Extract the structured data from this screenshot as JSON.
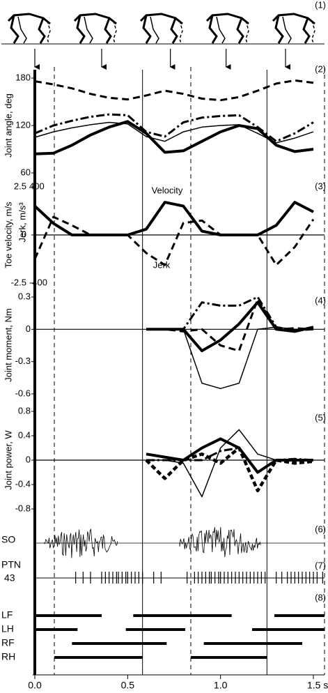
{
  "x_axis": {
    "xlim": [
      0,
      1.56
    ],
    "xticks": [
      {
        "value": 0,
        "label": "0.0"
      },
      0.5,
      {
        "value": 1,
        "label": "1.0"
      },
      {
        "value": 1.5,
        "label": "1.5 s"
      }
    ],
    "solid_lines": [
      0.58,
      1.25
    ],
    "dashed_lines": [
      0.105,
      0.84,
      1.56
    ]
  },
  "chart_data": [
    {
      "type": "stick-figure",
      "label": "(1)",
      "arrows": [
        0,
        0.36,
        0.73,
        1.03,
        1.35
      ]
    },
    {
      "type": "line",
      "label": "(2)",
      "ylabel": "Joint angle, deg",
      "ylim": [
        60,
        180
      ],
      "yticks": [
        60,
        120,
        180
      ],
      "x": [
        0,
        0.1,
        0.2,
        0.3,
        0.4,
        0.5,
        0.6,
        0.7,
        0.8,
        0.9,
        1.0,
        1.1,
        1.2,
        1.3,
        1.4,
        1.5
      ],
      "series": [
        {
          "style": "dashed",
          "color": "#000",
          "values": [
            176,
            172,
            167,
            160,
            155,
            153,
            158,
            164,
            160,
            154,
            152,
            156,
            164,
            173,
            177,
            174
          ]
        },
        {
          "style": "dash-dot",
          "color": "#000",
          "values": [
            110,
            120,
            126,
            131,
            134,
            133,
            112,
            106,
            124,
            130,
            132,
            133,
            118,
            100,
            110,
            124
          ]
        },
        {
          "style": "thin",
          "color": "#000",
          "values": [
            105,
            112,
            117,
            121,
            124,
            122,
            106,
            100,
            112,
            118,
            120,
            121,
            110,
            98,
            104,
            112
          ]
        },
        {
          "style": "thick",
          "color": "#000",
          "values": [
            84,
            85,
            95,
            108,
            118,
            125,
            110,
            86,
            88,
            100,
            112,
            120,
            116,
            95,
            87,
            90
          ]
        }
      ]
    },
    {
      "type": "line",
      "label": "(3)",
      "ylabel": "Toe velocity, m/s",
      "y2label": "Jerk, m/s³",
      "ylim": [
        -2.5,
        2.5
      ],
      "yticks": [
        2.5,
        0,
        -2.5
      ],
      "y2lim": [
        -400,
        400
      ],
      "y2ticks": [
        400,
        -400
      ],
      "annotations": [
        "Velocity",
        "Jerk"
      ],
      "x": [
        0,
        0.1,
        0.2,
        0.3,
        0.4,
        0.5,
        0.6,
        0.7,
        0.8,
        0.9,
        1.0,
        1.1,
        1.2,
        1.3,
        1.4,
        1.5
      ],
      "series": [
        {
          "style": "thick",
          "color": "#000",
          "values": [
            1.5,
            0.6,
            0,
            0,
            0,
            0,
            0.3,
            1.7,
            1.5,
            0.2,
            0,
            0,
            0,
            0.5,
            1.7,
            1.2
          ]
        },
        {
          "style": "dashed",
          "color": "#000",
          "axis": "y2",
          "values": [
            -200,
            150,
            80,
            0,
            0,
            0,
            -150,
            -250,
            100,
            120,
            0,
            0,
            0,
            -250,
            -100,
            130
          ]
        }
      ]
    },
    {
      "type": "line",
      "label": "(4)",
      "ylabel": "Joint moment, Nm",
      "ylim": [
        -0.6,
        0.3
      ],
      "yticks": [
        0.3,
        0,
        -0.3,
        -0.6
      ],
      "x": [
        0.6,
        0.7,
        0.8,
        0.9,
        1.0,
        1.1,
        1.2,
        1.3,
        1.4,
        1.5
      ],
      "series": [
        {
          "style": "thick",
          "color": "#000",
          "values": [
            0,
            0,
            0,
            -0.2,
            -0.1,
            0.05,
            0.25,
            0,
            -0.02,
            0.02
          ]
        },
        {
          "style": "thin",
          "color": "#000",
          "values": [
            0,
            0,
            0,
            -0.5,
            -0.55,
            -0.5,
            0,
            0.02,
            0,
            0
          ]
        },
        {
          "style": "dash-dot",
          "color": "#000",
          "values": [
            0,
            0,
            0,
            0.25,
            0.22,
            0.22,
            0.3,
            0.02,
            -0.01,
            0
          ]
        },
        {
          "style": "dashed",
          "color": "#000",
          "values": [
            0,
            0,
            -0.02,
            0,
            -0.15,
            -0.2,
            0.28,
            0,
            0.01,
            0
          ]
        }
      ]
    },
    {
      "type": "line",
      "label": "(5)",
      "ylabel": "Joint power, W",
      "ylim": [
        -0.8,
        0.8
      ],
      "yticks": [
        0.8,
        0.4,
        0,
        -0.4,
        -0.8
      ],
      "x": [
        0.6,
        0.7,
        0.8,
        0.9,
        1.0,
        1.1,
        1.2,
        1.3,
        1.4,
        1.5
      ],
      "series": [
        {
          "style": "thick",
          "color": "#000",
          "values": [
            0.1,
            0.05,
            0,
            0.2,
            0.35,
            0.2,
            -0.2,
            0,
            0,
            0
          ]
        },
        {
          "style": "thin",
          "color": "#000",
          "values": [
            0,
            0,
            -0.05,
            -0.6,
            0.2,
            0.5,
            0.1,
            0,
            0,
            0
          ]
        },
        {
          "style": "thick-dashed",
          "color": "#000",
          "values": [
            0,
            -0.3,
            0,
            0.1,
            -0.05,
            0.2,
            -0.5,
            0,
            -0.05,
            -0.02
          ]
        },
        {
          "style": "dash-dot",
          "color": "#000",
          "values": [
            0,
            0,
            0,
            0,
            0.15,
            0.2,
            -0.2,
            0,
            0.02,
            0
          ]
        }
      ]
    },
    {
      "type": "emg",
      "label": "(6)",
      "name": "SO",
      "bursts": [
        [
          0.05,
          0.45
        ],
        [
          0.78,
          1.22
        ]
      ]
    },
    {
      "type": "spikes",
      "label": "(7)",
      "name": "PTN",
      "id": "43",
      "x": [
        0.22,
        0.26,
        0.3,
        0.36,
        0.38,
        0.4,
        0.42,
        0.44,
        0.45,
        0.47,
        0.49,
        0.5,
        0.52,
        0.54,
        0.56,
        0.58,
        0.64,
        0.68,
        0.82,
        0.86,
        0.88,
        0.9,
        0.92,
        0.94,
        0.95,
        0.97,
        0.99,
        1.0,
        1.02,
        1.04,
        1.06,
        1.08,
        1.1,
        1.12,
        1.14,
        1.16,
        1.18,
        1.2,
        1.22,
        1.24,
        1.3,
        1.33,
        1.36,
        1.38,
        1.4,
        1.42,
        1.44,
        1.46,
        1.48,
        1.5,
        1.52,
        1.55
      ]
    },
    {
      "type": "gait",
      "label": "(8)",
      "series": [
        {
          "name": "LF",
          "intervals": [
            [
              0,
              0.36
            ],
            [
              0.53,
              1.06
            ],
            [
              1.29,
              1.56
            ]
          ]
        },
        {
          "name": "LH",
          "intervals": [
            [
              0,
              0.23
            ],
            [
              0.49,
              0.81
            ],
            [
              1.17,
              1.56
            ]
          ]
        },
        {
          "name": "RF",
          "intervals": [
            [
              0.2,
              0.71
            ],
            [
              0.91,
              1.44
            ]
          ]
        },
        {
          "name": "RH",
          "intervals": [
            [
              0.105,
              0.58
            ],
            [
              0.84,
              1.25
            ]
          ]
        }
      ]
    }
  ]
}
